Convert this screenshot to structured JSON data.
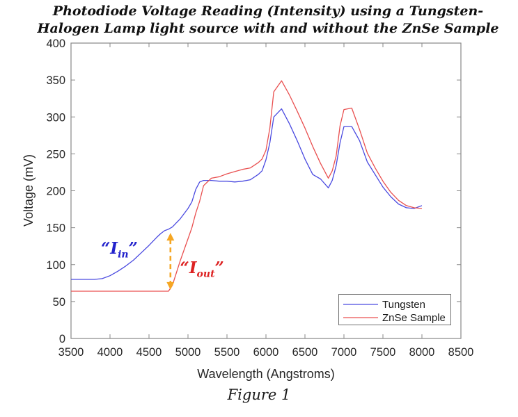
{
  "title": {
    "line1": "Photodiode Voltage Reading (Intensity) using a Tungsten-",
    "line2": "Halogen Lamp light source with and without the ZnSe Sample"
  },
  "caption": "Figure 1",
  "chart_data": {
    "type": "line",
    "title": "Photodiode Voltage Reading (Intensity) using a Tungsten-Halogen Lamp light source with and without the ZnSe Sample",
    "xlabel": "Wavelength (Angstroms)",
    "ylabel": "Voltage (mV)",
    "xlim": [
      3500,
      8500
    ],
    "ylim": [
      0,
      400
    ],
    "xticks": [
      3500,
      4000,
      4500,
      5000,
      5500,
      6000,
      6500,
      7000,
      7500,
      8000,
      8500
    ],
    "yticks": [
      0,
      50,
      100,
      150,
      200,
      250,
      300,
      350,
      400
    ],
    "grid": false,
    "legend_position": "southeast",
    "axis_color": "#878787",
    "x": [
      3500,
      3600,
      3700,
      3800,
      3900,
      4000,
      4100,
      4200,
      4300,
      4400,
      4500,
      4600,
      4650,
      4700,
      4750,
      4800,
      4900,
      5000,
      5050,
      5100,
      5150,
      5200,
      5300,
      5400,
      5500,
      5600,
      5700,
      5800,
      5900,
      5950,
      6000,
      6050,
      6100,
      6200,
      6300,
      6400,
      6500,
      6600,
      6700,
      6800,
      6850,
      6900,
      6950,
      7000,
      7100,
      7200,
      7300,
      7400,
      7500,
      7600,
      7700,
      7800,
      7900,
      8000
    ],
    "series": [
      {
        "name": "Tungsten",
        "color": "#4A4AE0",
        "values": [
          80,
          80,
          80,
          80,
          81,
          85,
          91,
          98,
          106,
          116,
          126,
          137,
          142,
          146,
          148,
          151,
          162,
          176,
          185,
          202,
          212,
          214,
          214,
          213,
          213,
          212,
          213,
          215,
          222,
          227,
          242,
          265,
          300,
          311,
          291,
          268,
          243,
          222,
          216,
          204,
          214,
          234,
          265,
          287,
          287,
          268,
          239,
          222,
          205,
          192,
          182,
          177,
          176,
          180
        ]
      },
      {
        "name": "ZnSe Sample",
        "color": "#E95050",
        "values": [
          64,
          64,
          64,
          64,
          64,
          64,
          64,
          64,
          64,
          64,
          64,
          64,
          64,
          64,
          64,
          72,
          105,
          135,
          150,
          170,
          186,
          207,
          217,
          219,
          223,
          226,
          229,
          231,
          238,
          243,
          255,
          285,
          334,
          349,
          330,
          308,
          285,
          260,
          237,
          217,
          227,
          247,
          288,
          310,
          312,
          283,
          251,
          231,
          213,
          198,
          187,
          180,
          177,
          176
        ]
      }
    ],
    "annotations": {
      "iin": {
        "open_quote": "“",
        "symbol": "I",
        "subscript": "in",
        "close_quote": "”",
        "color": "#2222CC",
        "x": 4120,
        "y": 120
      },
      "iout": {
        "open_quote": "“",
        "symbol": "I",
        "subscript": "out",
        "close_quote": "”",
        "color": "#DD2222",
        "x": 5180,
        "y": 93
      },
      "arrow": {
        "type": "vertical-double-arrow",
        "style": "dashed",
        "color": "#F5A623",
        "x": 4775,
        "y_top": 143,
        "y_bottom": 66
      }
    }
  }
}
